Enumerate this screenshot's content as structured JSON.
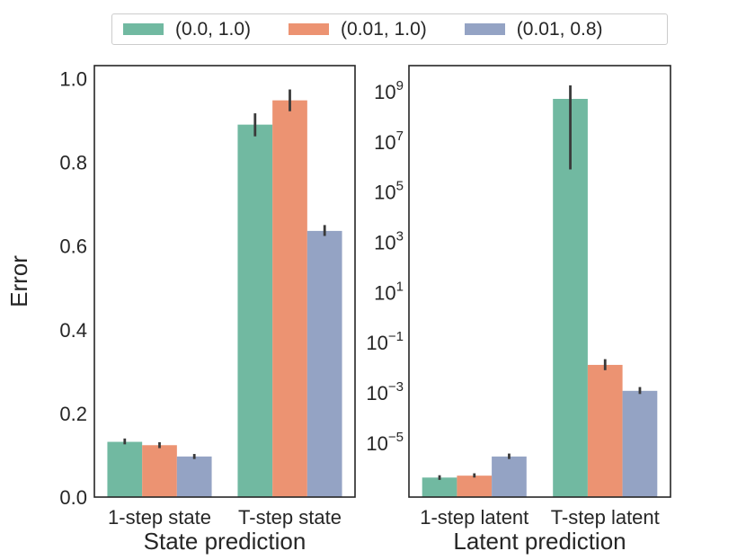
{
  "chart_data": {
    "type": "bar",
    "legend": {
      "position": "top",
      "entries": [
        {
          "label": "(0.0, 1.0)",
          "color": "#71b9a1"
        },
        {
          "label": "(0.01, 1.0)",
          "color": "#ec9372"
        },
        {
          "label": "(0.01, 0.8)",
          "color": "#94a3c4"
        }
      ]
    },
    "colors": {
      "spine": "#262626",
      "text": "#262626",
      "errorbar": "#3a3a3a"
    },
    "grid": false,
    "subplots": [
      {
        "xlabel": "State prediction",
        "ylabel": "Error",
        "yscale": "linear",
        "ylim": [
          0,
          1.031
        ],
        "yticks": [
          0.0,
          0.2,
          0.4,
          0.6,
          0.8,
          1.0
        ],
        "categories": [
          "1-step state",
          "T-step state"
        ],
        "series": [
          {
            "name": "(0.0, 1.0)",
            "values": [
              0.132,
              0.89
            ],
            "errors": [
              [
                0.126,
                0.14
              ],
              [
                0.862,
                0.917
              ]
            ]
          },
          {
            "name": "(0.01, 1.0)",
            "values": [
              0.124,
              0.948
            ],
            "errors": [
              [
                0.117,
                0.131
              ],
              [
                0.922,
                0.974
              ]
            ]
          },
          {
            "name": "(0.01, 0.8)",
            "values": [
              0.097,
              0.636
            ],
            "errors": [
              [
                0.091,
                0.103
              ],
              [
                0.624,
                0.65
              ]
            ]
          }
        ]
      },
      {
        "xlabel": "Latent prediction",
        "ylabel": "",
        "yscale": "log",
        "ylim": [
          7e-08,
          11000000000.0
        ],
        "ytick_exponents": [
          9,
          7,
          5,
          3,
          1,
          -1,
          -3,
          -5
        ],
        "categories": [
          "1-step latent",
          "T-step latent"
        ],
        "series": [
          {
            "name": "(0.0, 1.0)",
            "values": [
              4.2e-07,
              520000000.0
            ],
            "errors": [
              [
                3.4e-07,
                5.2e-07
              ],
              [
                800000.0,
                1800000000.0
              ]
            ]
          },
          {
            "name": "(0.01, 1.0)",
            "values": [
              5e-07,
              0.013
            ],
            "errors": [
              [
                4.2e-07,
                6.2e-07
              ],
              [
                0.008,
                0.022
              ]
            ]
          },
          {
            "name": "(0.01, 0.8)",
            "values": [
              2.9e-06,
              0.0012
            ],
            "errors": [
              [
                2.3e-06,
                3.8e-06
              ],
              [
                0.0009,
                0.0017
              ]
            ]
          }
        ]
      }
    ]
  }
}
